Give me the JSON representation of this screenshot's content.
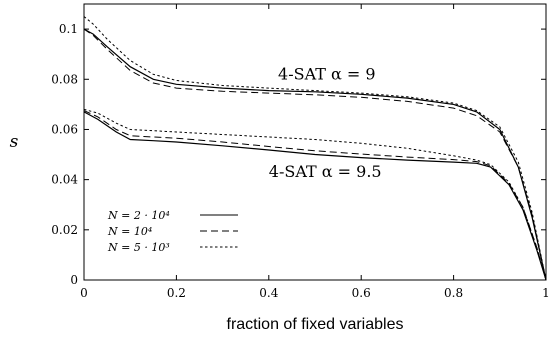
{
  "chart_data": {
    "type": "line",
    "title": "",
    "xlabel": "fraction of fixed variables",
    "ylabel": "s",
    "xlim": [
      0,
      1
    ],
    "ylim": [
      0,
      0.11
    ],
    "xticks": [
      "0",
      "0.2",
      "0.4",
      "0.6",
      "0.8",
      "1"
    ],
    "xtick_values": [
      0,
      0.2,
      0.4,
      0.6,
      0.8,
      1
    ],
    "yticks": [
      "0",
      "0.02",
      "0.04",
      "0.06",
      "0.08",
      "0.1"
    ],
    "ytick_values": [
      0,
      0.02,
      0.04,
      0.06,
      0.08,
      0.1
    ],
    "grid": false,
    "legend_position": "lower-left",
    "annotations": [
      {
        "text": "4-SAT α = 9",
        "x": 0.42,
        "y": 0.08
      },
      {
        "text": "4-SAT α = 9.5",
        "x": 0.4,
        "y": 0.041
      }
    ],
    "series": [
      {
        "name": "N = 2 · 10⁴",
        "style": "solid",
        "group": "4-SAT α = 9",
        "x": [
          0,
          0.02,
          0.05,
          0.1,
          0.15,
          0.2,
          0.3,
          0.4,
          0.5,
          0.6,
          0.7,
          0.8,
          0.85,
          0.9,
          0.94,
          0.97,
          1.0
        ],
        "y": [
          0.1,
          0.098,
          0.093,
          0.085,
          0.08,
          0.078,
          0.0765,
          0.0755,
          0.075,
          0.074,
          0.0725,
          0.07,
          0.067,
          0.06,
          0.045,
          0.025,
          0.0
        ]
      },
      {
        "name": "N = 10⁴",
        "style": "dashed",
        "group": "4-SAT α = 9",
        "x": [
          0,
          0.02,
          0.05,
          0.1,
          0.15,
          0.2,
          0.3,
          0.4,
          0.5,
          0.6,
          0.7,
          0.8,
          0.85,
          0.9,
          0.94,
          0.97,
          1.0
        ],
        "y": [
          0.1,
          0.0975,
          0.092,
          0.0835,
          0.0785,
          0.0765,
          0.0752,
          0.0745,
          0.0738,
          0.0728,
          0.0712,
          0.0685,
          0.0655,
          0.059,
          0.045,
          0.026,
          0.0
        ]
      },
      {
        "name": "N = 5 · 10³",
        "style": "dotted",
        "group": "4-SAT α = 9",
        "x": [
          0,
          0.02,
          0.05,
          0.1,
          0.15,
          0.2,
          0.3,
          0.4,
          0.5,
          0.6,
          0.7,
          0.8,
          0.85,
          0.9,
          0.94,
          0.97,
          1.0
        ],
        "y": [
          0.105,
          0.102,
          0.096,
          0.0875,
          0.082,
          0.0795,
          0.0775,
          0.0765,
          0.0755,
          0.0745,
          0.073,
          0.0705,
          0.0675,
          0.061,
          0.047,
          0.027,
          0.0
        ]
      },
      {
        "name": "N = 2 · 10⁴",
        "style": "solid",
        "group": "4-SAT α = 9.5",
        "x": [
          0,
          0.03,
          0.07,
          0.1,
          0.15,
          0.2,
          0.3,
          0.4,
          0.5,
          0.6,
          0.7,
          0.8,
          0.85,
          0.88,
          0.92,
          0.95,
          0.98,
          1.0
        ],
        "y": [
          0.067,
          0.064,
          0.059,
          0.056,
          0.0555,
          0.055,
          0.0535,
          0.0518,
          0.05,
          0.0488,
          0.0478,
          0.047,
          0.0465,
          0.045,
          0.038,
          0.028,
          0.012,
          0.0
        ]
      },
      {
        "name": "N = 10⁴",
        "style": "dashed",
        "group": "4-SAT α = 9.5",
        "x": [
          0,
          0.03,
          0.07,
          0.1,
          0.15,
          0.2,
          0.3,
          0.4,
          0.5,
          0.6,
          0.7,
          0.8,
          0.85,
          0.88,
          0.92,
          0.95,
          0.98,
          1.0
        ],
        "y": [
          0.0675,
          0.065,
          0.06,
          0.0575,
          0.057,
          0.0565,
          0.055,
          0.0532,
          0.0515,
          0.0502,
          0.049,
          0.048,
          0.0472,
          0.0455,
          0.0385,
          0.029,
          0.013,
          0.0
        ]
      },
      {
        "name": "N = 5 · 10³",
        "style": "dotted",
        "group": "4-SAT α = 9.5",
        "x": [
          0,
          0.03,
          0.07,
          0.1,
          0.15,
          0.2,
          0.3,
          0.4,
          0.5,
          0.6,
          0.7,
          0.8,
          0.85,
          0.88,
          0.92,
          0.95,
          0.98,
          1.0
        ],
        "y": [
          0.068,
          0.0665,
          0.0625,
          0.06,
          0.0595,
          0.059,
          0.058,
          0.057,
          0.056,
          0.0545,
          0.0525,
          0.0495,
          0.0478,
          0.046,
          0.039,
          0.029,
          0.013,
          0.0
        ]
      }
    ],
    "legend": [
      {
        "label": "N = 2 · 10⁴",
        "style": "solid"
      },
      {
        "label": "N = 10⁴",
        "style": "dashed"
      },
      {
        "label": "N = 5 · 10³",
        "style": "dotted"
      }
    ]
  }
}
